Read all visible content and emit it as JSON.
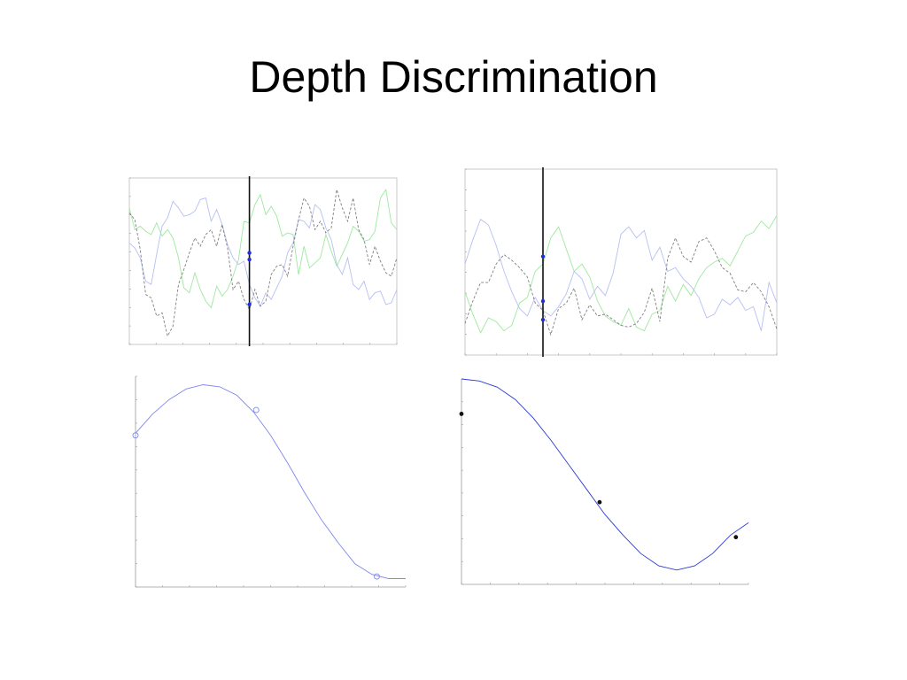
{
  "slide": {
    "title": "Depth Discrimination"
  },
  "chart_data": [
    {
      "type": "line",
      "panel": "top-left",
      "grid": false,
      "frame": "box",
      "ylim": [
        0,
        10
      ],
      "series": [
        {
          "color": "#9fe89f",
          "dash": false,
          "values": [
            8.2,
            6.9,
            7.1,
            6.8,
            6.6,
            7.3,
            6.5,
            6.9,
            6.4,
            5.2,
            3.4,
            3.1,
            4.3,
            3.3,
            2.6,
            2.2,
            3.5,
            2.9,
            3.3,
            4.1,
            5.1,
            7.4,
            7.3,
            8.4,
            9.0,
            7.8,
            8.3,
            7.7,
            6.5,
            6.7,
            6.6,
            4.2,
            5.9,
            4.6,
            4.9,
            5.2,
            6.6,
            5.6,
            4.7,
            5.4,
            6.1,
            7.1,
            6.8,
            6.2,
            6.3,
            6.8,
            8.8,
            9.3,
            7.3,
            6.9
          ]
        },
        {
          "color": "#b6bff2",
          "dash": false,
          "values": [
            6.1,
            5.8,
            5.2,
            3.8,
            3.6,
            5.4,
            7.1,
            7.6,
            8.6,
            8.2,
            7.7,
            7.8,
            8.0,
            8.7,
            8.8,
            7.4,
            8.1,
            7.2,
            6.0,
            5.2,
            4.8,
            5.0,
            3.6,
            2.8,
            2.3,
            3.1,
            2.7,
            3.4,
            4.1,
            5.5,
            6.1,
            7.5,
            7.4,
            7.0,
            8.4,
            8.1,
            7.0,
            6.3,
            4.8,
            4.2,
            5.2,
            3.6,
            3.3,
            3.8,
            2.7,
            3.1,
            3.2,
            2.4,
            2.5,
            3.3
          ]
        },
        {
          "color": "#7f7f7f",
          "dash": true,
          "values": [
            7.9,
            7.5,
            5.7,
            3.0,
            2.8,
            1.7,
            1.9,
            0.5,
            1.1,
            3.6,
            4.5,
            5.5,
            6.4,
            5.9,
            6.6,
            6.9,
            5.9,
            7.2,
            5.8,
            3.3,
            3.8,
            2.7,
            2.1,
            3.3,
            2.3,
            2.6,
            4.2,
            4.7,
            4.8,
            4.1,
            5.9,
            7.5,
            8.8,
            8.3,
            6.9,
            7.4,
            6.7,
            7.0,
            9.3,
            8.2,
            7.4,
            8.8,
            6.9,
            6.3,
            4.8,
            5.9,
            5.0,
            4.3,
            4.1,
            5.2
          ]
        }
      ],
      "marker_line": {
        "x_index": 22
      },
      "marker_points": [
        5.5,
        5.1,
        2.4
      ]
    },
    {
      "type": "line",
      "panel": "top-right",
      "grid": false,
      "frame": "box",
      "ylim": [
        0,
        10
      ],
      "series": [
        {
          "color": "#9fe89f",
          "dash": false,
          "values": [
            3.4,
            2.2,
            1.2,
            2.0,
            1.8,
            1.3,
            1.6,
            2.8,
            3.1,
            4.5,
            4.9,
            6.3,
            6.9,
            5.7,
            4.5,
            4.9,
            4.2,
            2.9,
            2.1,
            1.8,
            1.6,
            2.5,
            1.5,
            1.3,
            2.2,
            2.4,
            3.7,
            2.9,
            3.8,
            3.2,
            4.1,
            4.7,
            5.0,
            5.2,
            4.8,
            5.6,
            6.4,
            6.6,
            7.2,
            6.8,
            7.5
          ]
        },
        {
          "color": "#b6bff2",
          "dash": false,
          "values": [
            4.9,
            6.2,
            7.3,
            7.0,
            5.9,
            4.5,
            3.4,
            2.5,
            2.1,
            3.1,
            2.4,
            2.1,
            2.6,
            3.3,
            4.5,
            4.1,
            3.0,
            3.7,
            3.2,
            4.4,
            6.5,
            6.9,
            6.3,
            6.7,
            5.1,
            5.8,
            4.5,
            4.7,
            4.1,
            3.7,
            3.1,
            2.0,
            2.2,
            3.0,
            2.7,
            3.1,
            2.4,
            2.6,
            1.3,
            3.9,
            2.8
          ]
        },
        {
          "color": "#7f7f7f",
          "dash": true,
          "values": [
            1.7,
            2.9,
            3.9,
            3.9,
            4.9,
            5.4,
            5.1,
            4.7,
            4.2,
            2.8,
            2.4,
            1.1,
            2.5,
            2.8,
            3.6,
            1.9,
            2.7,
            2.1,
            2.2,
            1.9,
            1.6,
            1.5,
            1.7,
            2.3,
            3.6,
            1.8,
            5.2,
            6.3,
            5.3,
            5.0,
            6.1,
            6.3,
            5.6,
            4.7,
            4.4,
            3.5,
            3.4,
            3.9,
            3.4,
            2.6,
            1.4
          ]
        }
      ],
      "marker_line": {
        "x_index": 10
      },
      "marker_points": [
        5.3,
        2.9,
        1.9
      ]
    },
    {
      "type": "line",
      "panel": "bottom-left",
      "grid": false,
      "frame": "axes",
      "ylim": [
        0,
        10
      ],
      "series": [
        {
          "color": "#7f86ee",
          "dash": false,
          "values": [
            7.3,
            8.2,
            8.9,
            9.4,
            9.6,
            9.5,
            9.1,
            8.3,
            7.2,
            5.9,
            4.5,
            3.2,
            2.1,
            1.1,
            0.6,
            0.4,
            0.4
          ]
        }
      ],
      "points": [
        {
          "x": 0,
          "y": 7.2
        },
        {
          "x": 6.7,
          "y": 8.4
        },
        {
          "x": 13.4,
          "y": 0.5
        }
      ],
      "point_style": "open-circle",
      "xlim": [
        0,
        15
      ]
    },
    {
      "type": "line",
      "panel": "bottom-right",
      "grid": false,
      "frame": "axes",
      "ylim": [
        0,
        10
      ],
      "series": [
        {
          "color": "#2a3bd6",
          "dash": false,
          "values": [
            10.0,
            9.9,
            9.6,
            9.0,
            8.1,
            7.0,
            5.8,
            4.6,
            3.4,
            2.4,
            1.5,
            0.9,
            0.7,
            0.9,
            1.5,
            2.4,
            3.0
          ]
        }
      ],
      "points": [
        {
          "x": 0,
          "y": 8.3
        },
        {
          "x": 7.7,
          "y": 4.0
        },
        {
          "x": 15.3,
          "y": 2.3
        }
      ],
      "point_style": "filled-dot",
      "xlim": [
        0,
        16
      ]
    }
  ]
}
